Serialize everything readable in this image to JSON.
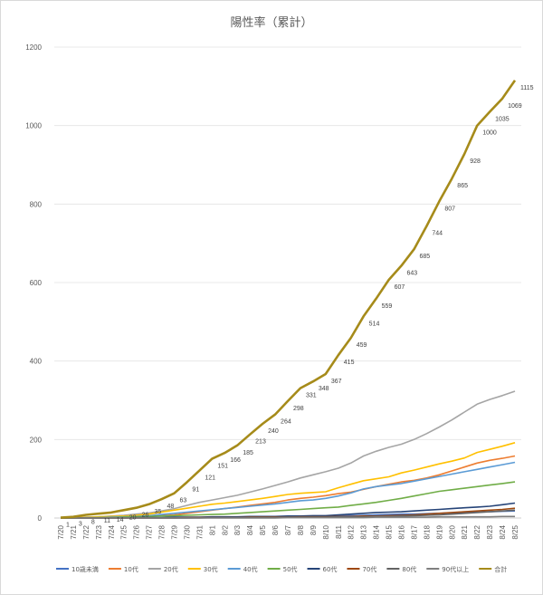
{
  "chart_data": {
    "type": "line",
    "title": "陽性率（累計）",
    "xlabel": "",
    "ylabel": "",
    "ylim": [
      0,
      1200
    ],
    "yticks": [
      0,
      200,
      400,
      600,
      800,
      1000,
      1200
    ],
    "grid": true,
    "legend_position": "bottom",
    "categories": [
      "7/20",
      "7/21",
      "7/22",
      "7/23",
      "7/24",
      "7/25",
      "7/26",
      "7/27",
      "7/28",
      "7/29",
      "7/30",
      "7/31",
      "8/1",
      "8/2",
      "8/3",
      "8/4",
      "8/5",
      "8/6",
      "8/7",
      "8/8",
      "8/9",
      "8/10",
      "8/11",
      "8/12",
      "8/13",
      "8/14",
      "8/15",
      "8/16",
      "8/17",
      "8/18",
      "8/19",
      "8/20",
      "8/21",
      "8/22",
      "8/23",
      "8/24",
      "8/25"
    ],
    "series": [
      {
        "name": "10歳未満",
        "color": "#4472c4",
        "values": [
          0,
          0,
          0,
          0,
          0,
          0,
          0,
          0,
          0,
          0,
          0,
          1,
          1,
          1,
          1,
          2,
          2,
          2,
          3,
          3,
          4,
          4,
          5,
          6,
          7,
          8,
          9,
          10,
          10,
          11,
          12,
          13,
          14,
          15,
          16,
          17,
          18
        ]
      },
      {
        "name": "10代",
        "color": "#ed7d31",
        "values": [
          0,
          0,
          1,
          1,
          2,
          2,
          3,
          4,
          6,
          8,
          12,
          16,
          20,
          24,
          28,
          32,
          36,
          40,
          46,
          50,
          53,
          57,
          62,
          66,
          73,
          80,
          86,
          92,
          96,
          102,
          110,
          120,
          130,
          140,
          147,
          152,
          158
        ]
      },
      {
        "name": "20代",
        "color": "#a5a5a5",
        "values": [
          0,
          1,
          2,
          3,
          5,
          7,
          10,
          13,
          18,
          24,
          32,
          40,
          46,
          52,
          58,
          66,
          74,
          83,
          92,
          102,
          110,
          118,
          127,
          140,
          158,
          170,
          180,
          188,
          200,
          215,
          232,
          250,
          270,
          290,
          302,
          312,
          323
        ]
      },
      {
        "name": "30代",
        "color": "#ffc000",
        "values": [
          0,
          1,
          2,
          3,
          4,
          5,
          7,
          10,
          15,
          20,
          25,
          30,
          35,
          38,
          42,
          46,
          50,
          55,
          60,
          63,
          65,
          67,
          77,
          86,
          95,
          100,
          105,
          115,
          122,
          130,
          138,
          145,
          153,
          167,
          175,
          183,
          192
        ]
      },
      {
        "name": "40代",
        "color": "#5b9bd5",
        "values": [
          0,
          0,
          1,
          1,
          2,
          3,
          4,
          6,
          9,
          12,
          15,
          18,
          21,
          24,
          27,
          30,
          33,
          36,
          40,
          44,
          46,
          50,
          56,
          64,
          74,
          80,
          84,
          88,
          94,
          100,
          106,
          112,
          118,
          124,
          130,
          136,
          142
        ]
      },
      {
        "name": "50代",
        "color": "#70ad47",
        "values": [
          0,
          0,
          0,
          1,
          1,
          2,
          3,
          4,
          5,
          6,
          7,
          8,
          9,
          10,
          12,
          14,
          16,
          18,
          20,
          22,
          24,
          26,
          28,
          32,
          36,
          40,
          45,
          50,
          56,
          62,
          68,
          72,
          76,
          80,
          84,
          88,
          92
        ]
      },
      {
        "name": "60代",
        "color": "#264478",
        "values": [
          0,
          0,
          0,
          0,
          0,
          0,
          1,
          1,
          1,
          2,
          2,
          2,
          3,
          3,
          3,
          4,
          4,
          4,
          5,
          5,
          6,
          6,
          8,
          10,
          12,
          14,
          15,
          16,
          18,
          20,
          22,
          24,
          26,
          28,
          30,
          34,
          38
        ]
      },
      {
        "name": "70代",
        "color": "#9e480e",
        "values": [
          0,
          0,
          0,
          0,
          0,
          0,
          0,
          0,
          0,
          0,
          1,
          1,
          1,
          1,
          1,
          2,
          2,
          2,
          2,
          3,
          3,
          3,
          4,
          4,
          5,
          5,
          6,
          7,
          8,
          10,
          12,
          14,
          16,
          18,
          20,
          22,
          25
        ]
      },
      {
        "name": "80代",
        "color": "#636363",
        "values": [
          0,
          0,
          0,
          0,
          0,
          0,
          0,
          0,
          0,
          0,
          0,
          0,
          1,
          1,
          1,
          1,
          1,
          1,
          2,
          2,
          2,
          2,
          3,
          3,
          3,
          4,
          4,
          5,
          6,
          7,
          8,
          10,
          12,
          14,
          16,
          18,
          20
        ]
      },
      {
        "name": "90代以上",
        "color": "#7f7f7f",
        "values": [
          0,
          0,
          0,
          0,
          0,
          0,
          0,
          0,
          0,
          0,
          0,
          0,
          0,
          0,
          0,
          0,
          0,
          0,
          1,
          1,
          1,
          1,
          1,
          1,
          1,
          2,
          2,
          2,
          2,
          2,
          3,
          3,
          3,
          3,
          3,
          4,
          4
        ]
      },
      {
        "name": "合計",
        "color": "#a68b1a",
        "values": [
          1,
          3,
          8,
          11,
          14,
          20,
          26,
          35,
          48,
          63,
          91,
          121,
          151,
          166,
          185,
          213,
          240,
          264,
          298,
          331,
          348,
          367,
          415,
          459,
          514,
          559,
          607,
          643,
          685,
          744,
          807,
          865,
          928,
          1000,
          1035,
          1069,
          1115
        ]
      }
    ],
    "data_labels": [
      "1",
      "3",
      "8",
      "11",
      "14",
      "20",
      "26",
      "35",
      "48",
      "63",
      "91",
      "121",
      "151",
      "166",
      "185",
      "213",
      "240",
      "264",
      "298",
      "331",
      "348",
      "367",
      "415",
      "459",
      "514",
      "559",
      "607",
      "643",
      "685",
      "744",
      "807",
      "865",
      "928",
      "1000",
      "1035",
      "1069",
      "1115"
    ]
  }
}
